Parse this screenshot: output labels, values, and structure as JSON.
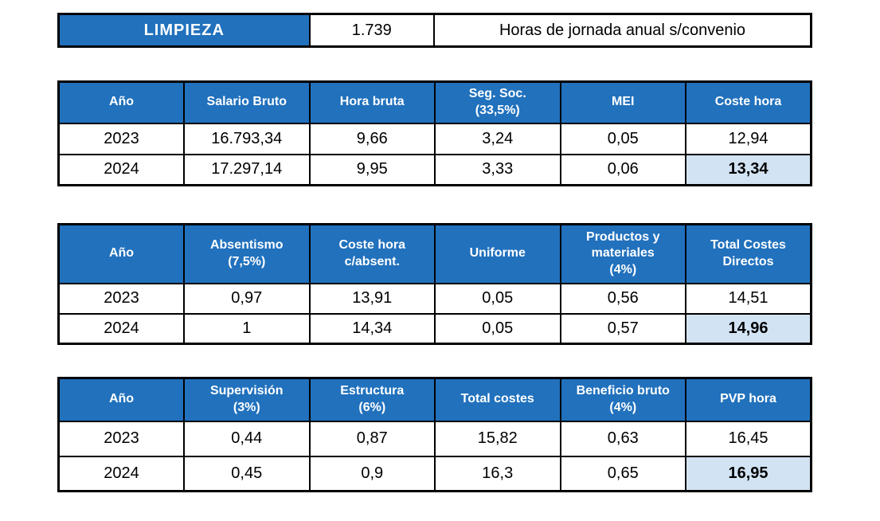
{
  "colors": {
    "header_blue": "#2171BD",
    "highlight_blue": "#D2E3F3",
    "border_black": "#000000",
    "header_text_white": "#FFFFFF",
    "body_text_black": "#000000"
  },
  "title_bar": {
    "category": "LIMPIEZA",
    "annual_hours": "1.739",
    "description": "Horas de jornada anual s/convenio"
  },
  "tables": [
    {
      "name": "hourly-cost-table",
      "headers": [
        "Año",
        "Salario Bruto",
        "Hora bruta",
        "Seg. Soc.\n(33,5%)",
        "MEI",
        "Coste hora"
      ],
      "rows": [
        [
          "2023",
          "16.793,34",
          "9,66",
          "3,24",
          "0,05",
          "12,94"
        ],
        [
          "2024",
          "17.297,14",
          "9,95",
          "3,33",
          "0,06",
          "13,34"
        ]
      ],
      "highlight": {
        "row": 1,
        "col": 5
      }
    },
    {
      "name": "direct-costs-table",
      "headers": [
        "Año",
        "Absentismo\n(7,5%)",
        "Coste hora\nc/absent.",
        "Uniforme",
        "Productos y\nmateriales\n(4%)",
        "Total Costes\nDirectos"
      ],
      "rows": [
        [
          "2023",
          "0,97",
          "13,91",
          "0,05",
          "0,56",
          "14,51"
        ],
        [
          "2024",
          "1",
          "14,34",
          "0,05",
          "0,57",
          "14,96"
        ]
      ],
      "highlight": {
        "row": 1,
        "col": 5
      }
    },
    {
      "name": "pvp-table",
      "headers": [
        "Año",
        "Supervisión\n(3%)",
        "Estructura\n(6%)",
        "Total costes",
        "Beneficio bruto\n(4%)",
        "PVP hora"
      ],
      "rows": [
        [
          "2023",
          "0,44",
          "0,87",
          "15,82",
          "0,63",
          "16,45"
        ],
        [
          "2024",
          "0,45",
          "0,9",
          "16,3",
          "0,65",
          "16,95"
        ]
      ],
      "highlight": {
        "row": 1,
        "col": 5
      }
    }
  ]
}
